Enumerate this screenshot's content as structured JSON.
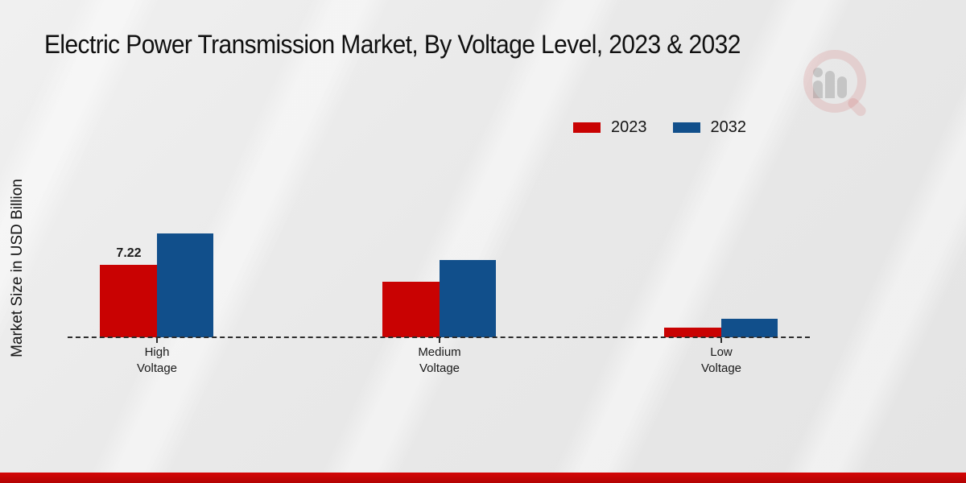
{
  "title": "Electric Power Transmission Market, By Voltage Level, 2023 & 2032",
  "ylabel": "Market Size in USD Billion",
  "legend": {
    "items": [
      {
        "label": "2023",
        "color": "#c90202"
      },
      {
        "label": "2032",
        "color": "#114f8b"
      }
    ]
  },
  "watermark_icon": "magnifier-bar-chart-logo",
  "chart_data": {
    "type": "bar",
    "title": "Electric Power Transmission Market, By Voltage Level, 2023 & 2032",
    "xlabel": "",
    "ylabel": "Market Size in USD Billion",
    "categories": [
      "High Voltage",
      "Medium Voltage",
      "Low Voltage"
    ],
    "series": [
      {
        "name": "2023",
        "color": "#c90202",
        "values": [
          7.22,
          5.55,
          0.95
        ],
        "data_labels": [
          "7.22",
          "",
          ""
        ]
      },
      {
        "name": "2032",
        "color": "#114f8b",
        "values": [
          10.35,
          7.7,
          1.85
        ],
        "data_labels": [
          "",
          "",
          ""
        ]
      }
    ],
    "ylim": [
      0,
      12
    ],
    "y_axis_ticks_visible": false,
    "gridlines": false,
    "baseline_style": "dashed",
    "legend_position": "top-right"
  },
  "footer": {
    "accent_color": "#c00404"
  }
}
